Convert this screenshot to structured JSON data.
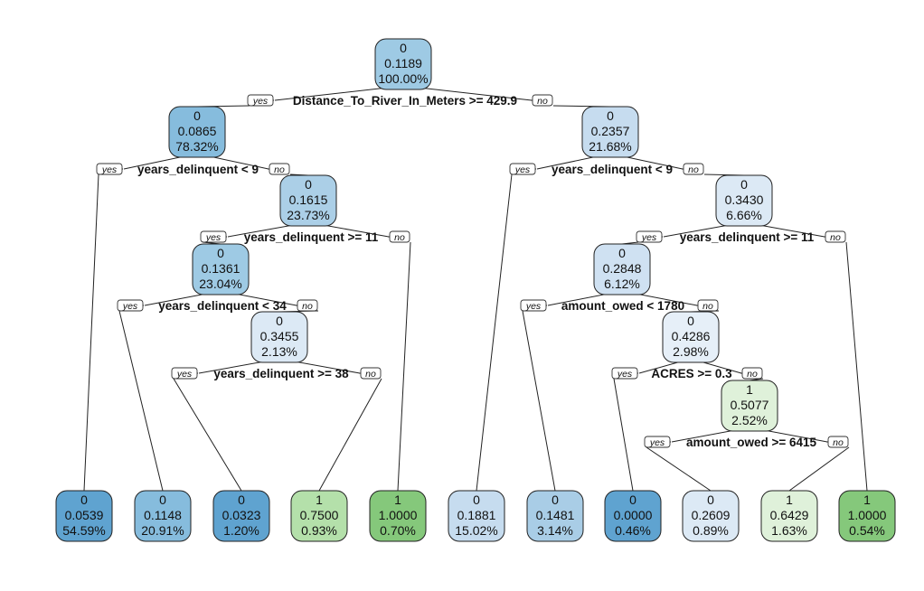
{
  "tree": {
    "yes_label": "yes",
    "no_label": "no",
    "colors": {
      "class0_dark": "#5fa3d0",
      "class0_mid": "#86bcdd",
      "class0_light": "#a9cde6",
      "class0_pale": "#c6dcef",
      "class0_faint": "#dce9f5",
      "class1_faint": "#dff1da",
      "class1_light": "#b4e0aa",
      "class1_dark": "#85c87b"
    },
    "nodes": [
      {
        "id": "n0",
        "cls": "0",
        "prob": "0.1189",
        "pct": "100.00%",
        "color": "#9ecae4"
      },
      {
        "id": "n1",
        "cls": "0",
        "prob": "0.0865",
        "pct": "78.32%",
        "color": "#86bcdd"
      },
      {
        "id": "n2",
        "cls": "0",
        "prob": "0.2357",
        "pct": "21.68%",
        "color": "#c6dcef"
      },
      {
        "id": "n3",
        "cls": "0",
        "prob": "0.1615",
        "pct": "23.73%",
        "color": "#abcfe7"
      },
      {
        "id": "n4",
        "cls": "0",
        "prob": "0.3430",
        "pct": "6.66%",
        "color": "#dce9f5"
      },
      {
        "id": "n5",
        "cls": "0",
        "prob": "0.1361",
        "pct": "23.04%",
        "color": "#9ecae4"
      },
      {
        "id": "n6",
        "cls": "0",
        "prob": "0.2848",
        "pct": "6.12%",
        "color": "#cfe1f2"
      },
      {
        "id": "n7",
        "cls": "0",
        "prob": "0.3455",
        "pct": "2.13%",
        "color": "#dce9f5"
      },
      {
        "id": "n8",
        "cls": "0",
        "prob": "0.4286",
        "pct": "2.98%",
        "color": "#e6eff8"
      },
      {
        "id": "n9",
        "cls": "1",
        "prob": "0.5077",
        "pct": "2.52%",
        "color": "#dff1da"
      },
      {
        "id": "l1",
        "cls": "0",
        "prob": "0.0539",
        "pct": "54.59%",
        "color": "#5fa3d0"
      },
      {
        "id": "l2",
        "cls": "0",
        "prob": "0.1148",
        "pct": "20.91%",
        "color": "#86bcdd"
      },
      {
        "id": "l3",
        "cls": "0",
        "prob": "0.0323",
        "pct": "1.20%",
        "color": "#5fa3d0"
      },
      {
        "id": "l4",
        "cls": "1",
        "prob": "0.7500",
        "pct": "0.93%",
        "color": "#b4e0aa"
      },
      {
        "id": "l5",
        "cls": "1",
        "prob": "1.0000",
        "pct": "0.70%",
        "color": "#85c87b"
      },
      {
        "id": "l6",
        "cls": "0",
        "prob": "0.1881",
        "pct": "15.02%",
        "color": "#c6dcef"
      },
      {
        "id": "l7",
        "cls": "0",
        "prob": "0.1481",
        "pct": "3.14%",
        "color": "#a9cde6"
      },
      {
        "id": "l8",
        "cls": "0",
        "prob": "0.0000",
        "pct": "0.46%",
        "color": "#5fa3d0"
      },
      {
        "id": "l9",
        "cls": "0",
        "prob": "0.2609",
        "pct": "0.89%",
        "color": "#dce9f5"
      },
      {
        "id": "l10",
        "cls": "1",
        "prob": "0.6429",
        "pct": "1.63%",
        "color": "#dff1da"
      },
      {
        "id": "l11",
        "cls": "1",
        "prob": "1.0000",
        "pct": "0.54%",
        "color": "#85c87b"
      }
    ],
    "splits": [
      {
        "id": "s0",
        "label": "Distance_To_River_In_Meters >= 429.9"
      },
      {
        "id": "s1",
        "label": "years_delinquent < 9"
      },
      {
        "id": "s2",
        "label": "years_delinquent < 9"
      },
      {
        "id": "s3",
        "label": "years_delinquent >= 11"
      },
      {
        "id": "s4",
        "label": "years_delinquent >= 11"
      },
      {
        "id": "s5",
        "label": "years_delinquent < 34"
      },
      {
        "id": "s6",
        "label": "amount_owed < 1780"
      },
      {
        "id": "s7",
        "label": "years_delinquent >= 38"
      },
      {
        "id": "s8",
        "label": "ACRES >= 0.3"
      },
      {
        "id": "s9",
        "label": "amount_owed >= 6415"
      }
    ]
  }
}
